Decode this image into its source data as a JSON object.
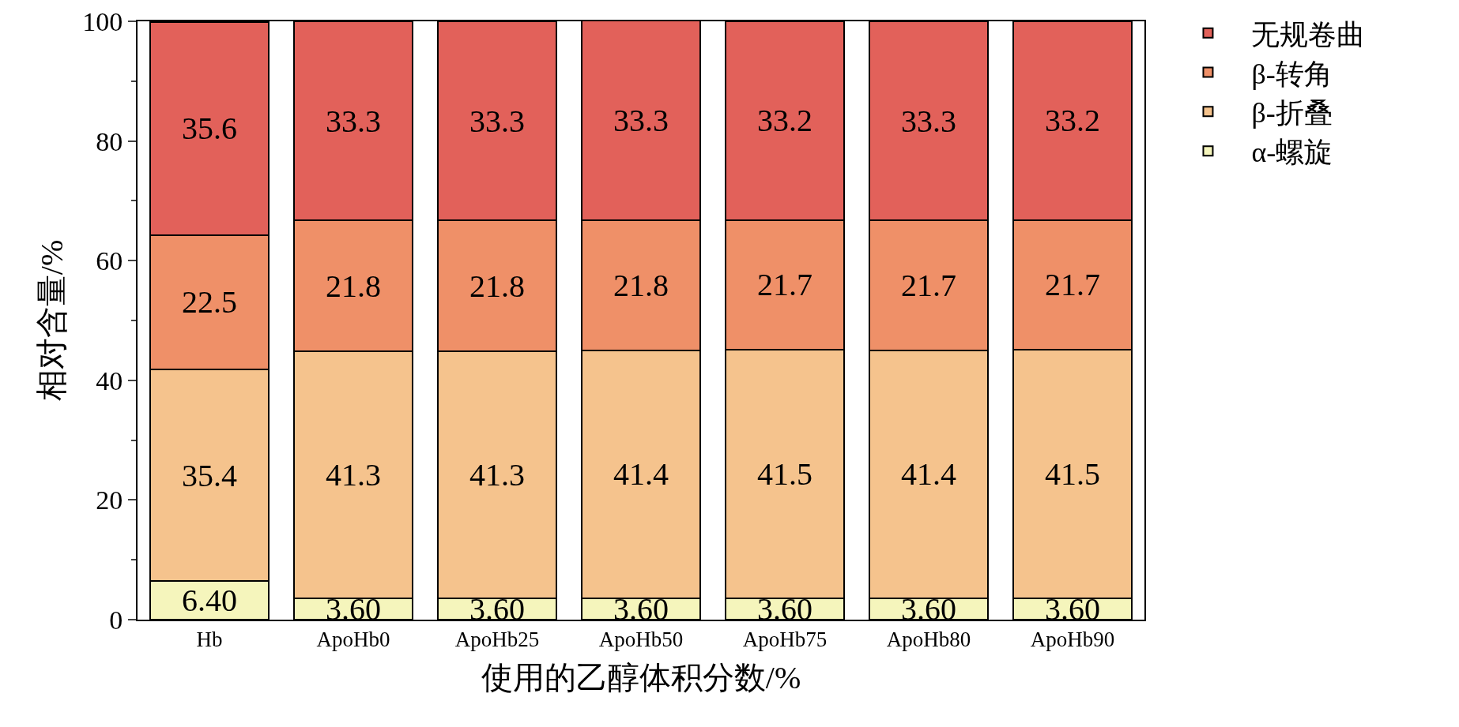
{
  "chart_data": {
    "type": "bar",
    "stacked": true,
    "xlabel": "使用的乙醇体积分数/%",
    "ylabel": "相对含量/%",
    "categories": [
      "Hb",
      "ApoHb0",
      "ApoHb25",
      "ApoHb50",
      "ApoHb75",
      "ApoHb80",
      "ApoHb90"
    ],
    "series": [
      {
        "name": "α-螺旋",
        "color": "#f5f5bc",
        "values": [
          6.4,
          3.6,
          3.6,
          3.6,
          3.6,
          3.6,
          3.6
        ],
        "value_labels": [
          "6.40",
          "3.60",
          "3.60",
          "3.60",
          "3.60",
          "3.60",
          "3.60"
        ]
      },
      {
        "name": "β-折叠",
        "color": "#f5c38d",
        "values": [
          35.4,
          41.3,
          41.3,
          41.4,
          41.5,
          41.4,
          41.5
        ],
        "value_labels": [
          "35.4",
          "41.3",
          "41.3",
          "41.4",
          "41.5",
          "41.4",
          "41.5"
        ]
      },
      {
        "name": "β-转角",
        "color": "#ef9068",
        "values": [
          22.5,
          21.8,
          21.8,
          21.8,
          21.7,
          21.7,
          21.7
        ],
        "value_labels": [
          "22.5",
          "21.8",
          "21.8",
          "21.8",
          "21.7",
          "21.7",
          "21.7"
        ]
      },
      {
        "name": "无规卷曲",
        "color": "#e2615a",
        "values": [
          35.6,
          33.3,
          33.3,
          33.3,
          33.2,
          33.3,
          33.2
        ],
        "value_labels": [
          "35.6",
          "33.3",
          "33.3",
          "33.3",
          "33.2",
          "33.3",
          "33.2"
        ]
      }
    ],
    "ylim": [
      0,
      100
    ],
    "yticks": [
      0,
      20,
      40,
      60,
      80,
      100
    ],
    "grid": false,
    "legend": "top right"
  }
}
